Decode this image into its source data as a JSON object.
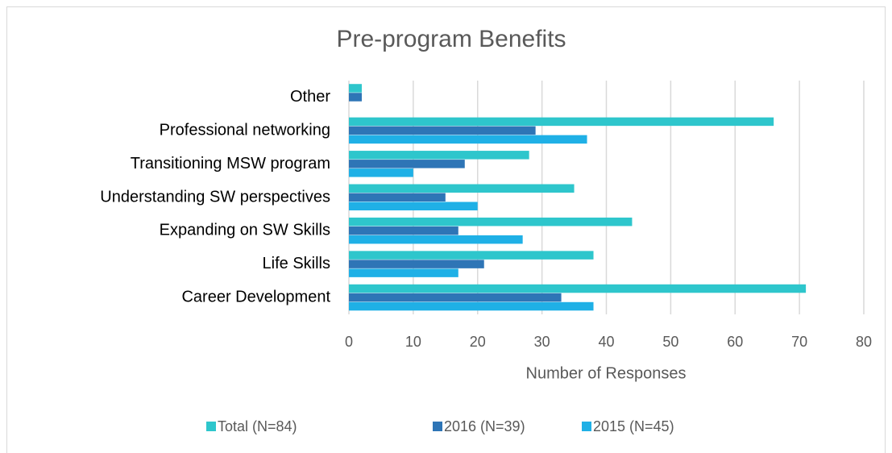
{
  "chart_data": {
    "type": "bar",
    "orientation": "horizontal",
    "title": "Pre-program Benefits",
    "x_label": "Number of Responses",
    "categories": [
      "Other",
      "Professional networking",
      "Transitioning MSW program",
      "Understanding SW perspectives",
      "Expanding on SW Skills",
      "Life Skills",
      "Career Development"
    ],
    "series": [
      {
        "name": "Total (N=84)",
        "color": "#2ec6cc",
        "values": [
          2,
          66,
          28,
          35,
          44,
          38,
          71
        ]
      },
      {
        "name": "2016 (N=39)",
        "color": "#2e75b6",
        "values": [
          2,
          29,
          18,
          15,
          17,
          21,
          33
        ]
      },
      {
        "name": "2015 (N=45)",
        "color": "#1fb0e6",
        "values": [
          null,
          37,
          10,
          20,
          27,
          17,
          38
        ]
      }
    ],
    "xlim": [
      0,
      80
    ],
    "xticks": [
      0,
      10,
      20,
      30,
      40,
      50,
      60,
      70,
      80
    ],
    "grid": true,
    "legend": "bottom"
  }
}
